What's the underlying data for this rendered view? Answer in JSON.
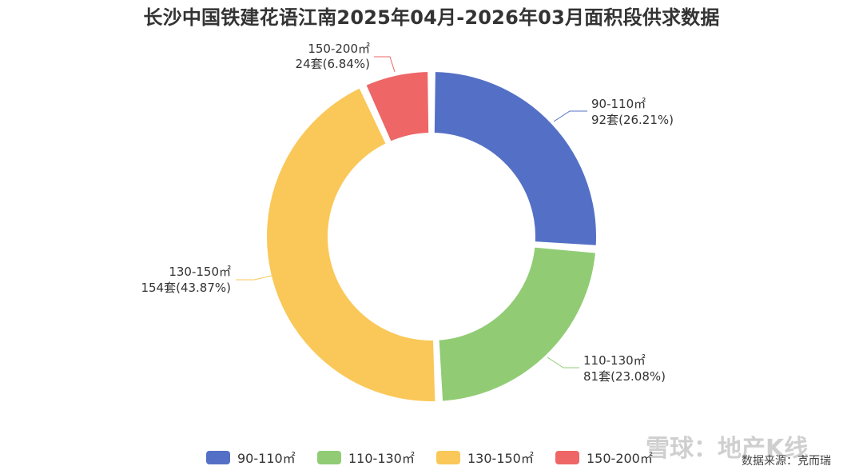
{
  "chart_data": {
    "type": "pie",
    "variant": "donut",
    "title": "长沙中国铁建花语江南2025年04月-2026年03月面积段供求数据",
    "categories": [
      "90-110㎡",
      "110-130㎡",
      "130-150㎡",
      "150-200㎡"
    ],
    "values": [
      92,
      81,
      154,
      24
    ],
    "percent_labels": [
      "26.21%",
      "23.08%",
      "43.87%",
      "6.84%"
    ],
    "value_labels": [
      "92套(26.21%)",
      "81套(23.08%)",
      "154套(43.87%)",
      "24套(6.84%)"
    ],
    "colors": [
      "#5470c6",
      "#91cc75",
      "#fac858",
      "#ee6666"
    ],
    "legend_position": "bottom"
  },
  "source_text": "数据来源：克而瑞",
  "watermark_text": "雪球：地产K线"
}
